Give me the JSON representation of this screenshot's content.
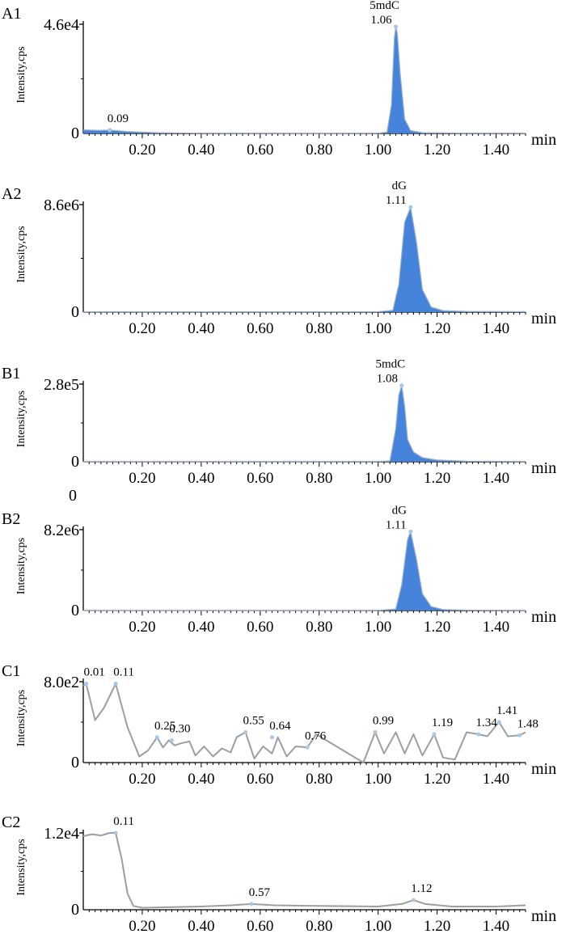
{
  "chart_data": [
    {
      "type": "line",
      "panel_label": "A1",
      "ylabel": "Intensity,cps",
      "xlabel": "min",
      "ymax_label": "4.6e4",
      "ymin_label": "0",
      "ylim": [
        0,
        46000
      ],
      "xlim": [
        0,
        1.5
      ],
      "xticks": [
        "0.20",
        "0.40",
        "0.60",
        "0.80",
        "1.00",
        "1.20",
        "1.40"
      ],
      "fill": true,
      "color": "#3b7dd8",
      "series": [
        {
          "x": [
            0.0,
            0.05,
            0.09,
            0.15,
            0.25,
            0.4,
            0.8,
            1.0,
            1.03,
            1.045,
            1.055,
            1.06,
            1.065,
            1.075,
            1.09,
            1.11,
            1.15,
            1.3,
            1.5
          ],
          "y": [
            1500,
            1300,
            1400,
            800,
            300,
            100,
            80,
            100,
            500,
            12000,
            40000,
            45000,
            42000,
            25000,
            6000,
            1200,
            300,
            150,
            100
          ]
        }
      ],
      "peak_labels": [
        {
          "x": 1.06,
          "y": 45000,
          "name": "5mdC",
          "rt": "1.06"
        },
        {
          "x": 0.09,
          "y": 1400,
          "name": "",
          "rt": "0.09"
        }
      ]
    },
    {
      "type": "line",
      "panel_label": "A2",
      "ylabel": "Intensity,cps",
      "xlabel": "min",
      "ymax_label": "8.6e6",
      "ymin_label": "0",
      "ylim": [
        0,
        8600000
      ],
      "xlim": [
        0,
        1.5
      ],
      "xticks": [
        "0.20",
        "0.40",
        "0.60",
        "0.80",
        "1.00",
        "1.20",
        "1.40"
      ],
      "fill": true,
      "color": "#3b7dd8",
      "series": [
        {
          "x": [
            0.0,
            0.5,
            1.0,
            1.05,
            1.07,
            1.09,
            1.11,
            1.13,
            1.15,
            1.18,
            1.22,
            1.3,
            1.5
          ],
          "y": [
            20000,
            20000,
            30000,
            150000,
            2200000,
            7200000,
            8400000,
            5600000,
            1800000,
            400000,
            120000,
            60000,
            40000
          ]
        }
      ],
      "peak_labels": [
        {
          "x": 1.11,
          "y": 8400000,
          "name": "dG",
          "rt": "1.11"
        }
      ]
    },
    {
      "type": "line",
      "panel_label": "B1",
      "ylabel": "Intensity,cps",
      "xlabel": "min",
      "ymax_label": "2.8e5",
      "ymin_label": "0",
      "ylim": [
        0,
        280000
      ],
      "xlim": [
        0,
        1.5
      ],
      "xticks": [
        "0.20",
        "0.40",
        "0.60",
        "0.80",
        "1.00",
        "1.20",
        "1.40"
      ],
      "extra_label": "0",
      "fill": true,
      "color": "#3b7dd8",
      "series": [
        {
          "x": [
            0.0,
            0.5,
            1.0,
            1.04,
            1.06,
            1.07,
            1.08,
            1.09,
            1.1,
            1.12,
            1.15,
            1.2,
            1.3,
            1.5
          ],
          "y": [
            500,
            500,
            1000,
            3000,
            120000,
            240000,
            275000,
            200000,
            80000,
            35000,
            15000,
            6000,
            2000,
            1000
          ]
        }
      ],
      "peak_labels": [
        {
          "x": 1.08,
          "y": 275000,
          "name": "5mdC",
          "rt": "1.08"
        }
      ]
    },
    {
      "type": "line",
      "panel_label": "B2",
      "ylabel": "Intensity,cps",
      "xlabel": "min",
      "ymax_label": "8.2e6",
      "ymin_label": "0",
      "ylim": [
        0,
        8200000
      ],
      "xlim": [
        0,
        1.5
      ],
      "xticks": [
        "0.20",
        "0.40",
        "0.60",
        "0.80",
        "1.00",
        "1.20",
        "1.40"
      ],
      "fill": true,
      "color": "#3b7dd8",
      "series": [
        {
          "x": [
            0.0,
            0.5,
            1.0,
            1.06,
            1.08,
            1.1,
            1.11,
            1.13,
            1.15,
            1.18,
            1.22,
            1.3,
            1.5
          ],
          "y": [
            10000,
            10000,
            20000,
            150000,
            2600000,
            7200000,
            8000000,
            5200000,
            1700000,
            400000,
            100000,
            40000,
            20000
          ]
        }
      ],
      "peak_labels": [
        {
          "x": 1.11,
          "y": 8000000,
          "name": "dG",
          "rt": "1.11"
        }
      ]
    },
    {
      "type": "line",
      "panel_label": "C1",
      "ylabel": "Intensity,cps",
      "xlabel": "min",
      "ymax_label": "8.0e2",
      "ymin_label": "0",
      "ylim": [
        0,
        800
      ],
      "xlim": [
        0,
        1.5
      ],
      "xticks": [
        "0.20",
        "0.40",
        "0.60",
        "0.80",
        "1.00",
        "1.20",
        "1.40"
      ],
      "fill": false,
      "color": "#9aa0a0",
      "series": [
        {
          "x": [
            0.0,
            0.01,
            0.04,
            0.07,
            0.11,
            0.15,
            0.19,
            0.22,
            0.25,
            0.27,
            0.29,
            0.31,
            0.33,
            0.36,
            0.38,
            0.41,
            0.44,
            0.47,
            0.5,
            0.52,
            0.55,
            0.58,
            0.61,
            0.64,
            0.66,
            0.69,
            0.72,
            0.76,
            0.79,
            0.95,
            0.99,
            1.02,
            1.06,
            1.09,
            1.12,
            1.15,
            1.19,
            1.22,
            1.26,
            1.3,
            1.34,
            1.37,
            1.41,
            1.44,
            1.48,
            1.5
          ],
          "y": [
            760,
            780,
            420,
            540,
            780,
            350,
            60,
            120,
            250,
            150,
            220,
            170,
            190,
            210,
            70,
            160,
            60,
            140,
            100,
            250,
            300,
            40,
            160,
            90,
            250,
            60,
            160,
            150,
            280,
            0,
            300,
            90,
            300,
            90,
            280,
            70,
            280,
            50,
            30,
            300,
            280,
            260,
            400,
            260,
            270,
            300
          ]
        }
      ],
      "peak_labels": [
        {
          "x": 0.01,
          "y": 780,
          "name": "",
          "rt": "0.01"
        },
        {
          "x": 0.11,
          "y": 780,
          "name": "",
          "rt": "0.11"
        },
        {
          "x": 0.25,
          "y": 250,
          "name": "",
          "rt": "0.25"
        },
        {
          "x": 0.3,
          "y": 220,
          "name": "",
          "rt": "0.30"
        },
        {
          "x": 0.55,
          "y": 300,
          "name": "",
          "rt": "0.55"
        },
        {
          "x": 0.64,
          "y": 250,
          "name": "",
          "rt": "0.64"
        },
        {
          "x": 0.76,
          "y": 150,
          "name": "",
          "rt": "0.76"
        },
        {
          "x": 0.99,
          "y": 300,
          "name": "",
          "rt": "0.99"
        },
        {
          "x": 1.19,
          "y": 280,
          "name": "",
          "rt": "1.19"
        },
        {
          "x": 1.34,
          "y": 280,
          "name": "",
          "rt": "1.34"
        },
        {
          "x": 1.41,
          "y": 400,
          "name": "",
          "rt": "1.41"
        },
        {
          "x": 1.48,
          "y": 270,
          "name": "",
          "rt": "1.48"
        }
      ]
    },
    {
      "type": "line",
      "panel_label": "C2",
      "ylabel": "Intensity,cps",
      "xlabel": "min",
      "ymax_label": "1.2e4",
      "ymin_label": "0",
      "ylim": [
        0,
        12000
      ],
      "xlim": [
        0,
        1.5
      ],
      "xticks": [
        "0.20",
        "0.40",
        "0.60",
        "0.80",
        "1.00",
        "1.20",
        "1.40"
      ],
      "fill": false,
      "color": "#9aa0a0",
      "series": [
        {
          "x": [
            0.0,
            0.03,
            0.06,
            0.09,
            0.11,
            0.13,
            0.15,
            0.17,
            0.2,
            0.3,
            0.4,
            0.5,
            0.57,
            0.65,
            0.8,
            1.0,
            1.08,
            1.12,
            1.16,
            1.25,
            1.4,
            1.5
          ],
          "y": [
            11500,
            11800,
            11600,
            12000,
            12000,
            8000,
            2500,
            600,
            300,
            400,
            500,
            700,
            900,
            700,
            600,
            500,
            900,
            1500,
            900,
            500,
            500,
            700
          ]
        }
      ],
      "peak_labels": [
        {
          "x": 0.11,
          "y": 12000,
          "name": "",
          "rt": "0.11"
        },
        {
          "x": 0.57,
          "y": 900,
          "name": "",
          "rt": "0.57"
        },
        {
          "x": 1.12,
          "y": 1500,
          "name": "",
          "rt": "1.12"
        }
      ]
    }
  ]
}
